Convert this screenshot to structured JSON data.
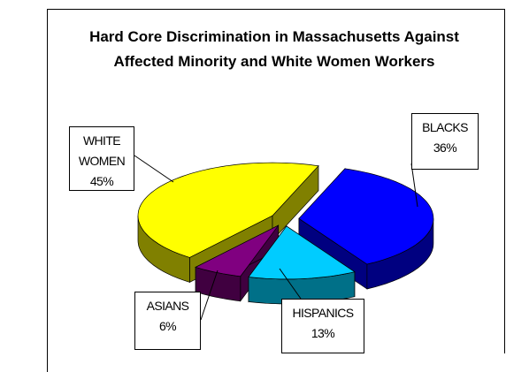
{
  "chart_data": {
    "type": "pie",
    "title": "Hard Core Discrimination in Massachusetts Against Affected Minority and White Women Workers",
    "categories": [
      "BLACKS",
      "HISPANICS",
      "ASIANS",
      "WHITE WOMEN"
    ],
    "values": [
      36,
      13,
      6,
      45
    ],
    "value_labels": [
      "36%",
      "13%",
      "6%",
      "45%"
    ],
    "colors": [
      "#0000ff",
      "#00ccff",
      "#800080",
      "#ffff00"
    ],
    "side_colors": [
      "#000080",
      "#007088",
      "#400040",
      "#808000"
    ]
  }
}
